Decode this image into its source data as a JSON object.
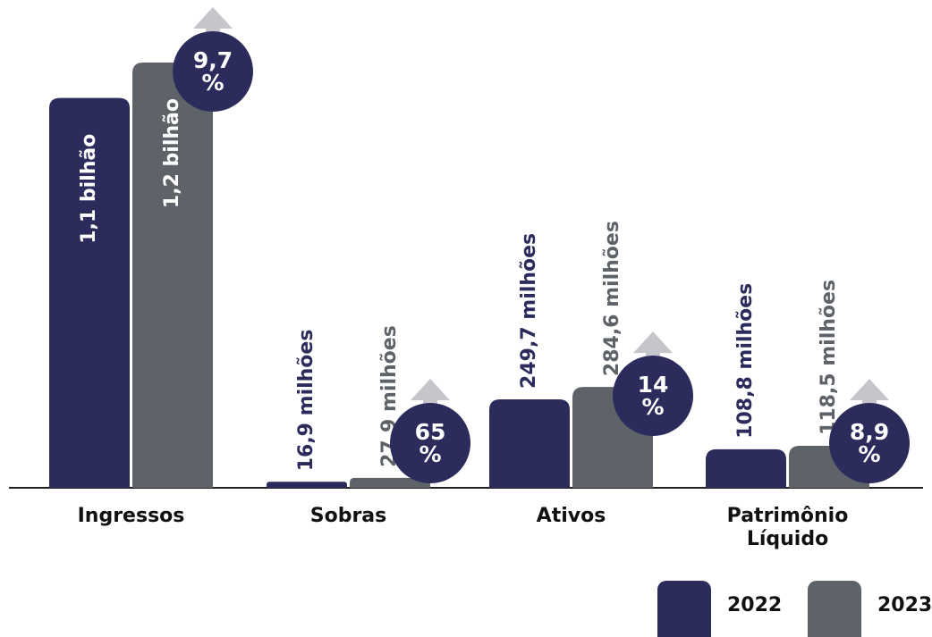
{
  "chart_data": {
    "type": "bar",
    "categories": [
      "Ingressos",
      "Sobras",
      "Ativos",
      "Patrimônio Líquido"
    ],
    "series": [
      {
        "name": "2022",
        "color": "#2b2c5c",
        "values": [
          1100000000,
          16900000,
          249700000,
          108800000
        ],
        "value_labels": [
          "1,1 bilhão",
          "16,9 milhões",
          "249,7 milhões",
          "108,8 milhões"
        ]
      },
      {
        "name": "2023",
        "color": "#5e6369",
        "values": [
          1200000000,
          27900000,
          284600000,
          118500000
        ],
        "value_labels": [
          "1,2 bilhão",
          "27,9 milhões",
          "284,6 milhões",
          "118,5 milhões"
        ]
      }
    ],
    "growth": [
      9.7,
      65,
      14,
      8.9
    ],
    "growth_labels": [
      "9,7 %",
      "65 %",
      "14 %",
      "8,9 %"
    ]
  }
}
